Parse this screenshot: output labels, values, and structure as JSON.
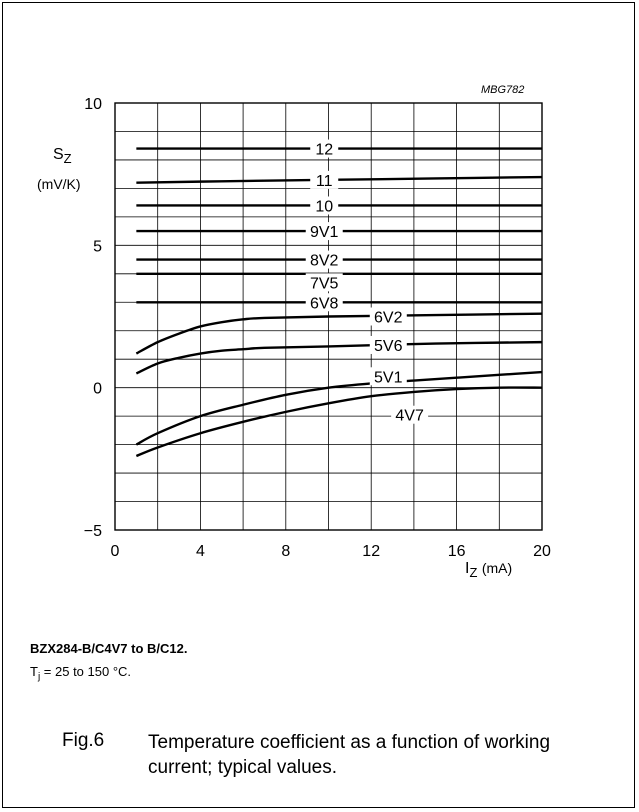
{
  "chart_data": {
    "type": "line",
    "code": "MBG782",
    "y_symbol": "S",
    "y_symbol_sub": "Z",
    "y_unit": "(mV/K)",
    "x_symbol": "I",
    "x_symbol_sub": "Z",
    "x_unit": "(mA)",
    "xlim": [
      0,
      20
    ],
    "ylim": [
      -5,
      10
    ],
    "x_ticks": [
      "0",
      "4",
      "8",
      "12",
      "16",
      "20"
    ],
    "y_ticks": [
      "10",
      "5",
      "0",
      "−5"
    ],
    "grid": true,
    "series": [
      {
        "name": "12",
        "x": [
          1,
          20
        ],
        "y": [
          8.4,
          8.4
        ]
      },
      {
        "name": "11",
        "x": [
          1,
          5,
          10,
          15,
          20
        ],
        "y": [
          7.2,
          7.25,
          7.3,
          7.35,
          7.4
        ]
      },
      {
        "name": "10",
        "x": [
          1,
          20
        ],
        "y": [
          6.4,
          6.4
        ]
      },
      {
        "name": "9V1",
        "x": [
          1,
          20
        ],
        "y": [
          5.5,
          5.5
        ]
      },
      {
        "name": "8V2",
        "x": [
          1,
          20
        ],
        "y": [
          4.5,
          4.5
        ]
      },
      {
        "name": "7V5",
        "x": [
          1,
          20
        ],
        "y": [
          4.0,
          4.0
        ]
      },
      {
        "name": "6V8",
        "x": [
          1,
          20
        ],
        "y": [
          3.0,
          3.0
        ]
      },
      {
        "name": "6V2",
        "x": [
          1,
          2,
          3,
          4,
          5,
          6,
          7,
          10,
          15,
          20
        ],
        "y": [
          1.2,
          1.6,
          1.9,
          2.15,
          2.3,
          2.4,
          2.45,
          2.5,
          2.55,
          2.6
        ]
      },
      {
        "name": "5V6",
        "x": [
          1,
          2,
          3,
          4,
          5,
          6,
          7,
          10,
          15,
          20
        ],
        "y": [
          0.5,
          0.85,
          1.05,
          1.2,
          1.3,
          1.35,
          1.4,
          1.45,
          1.55,
          1.6
        ]
      },
      {
        "name": "5V1",
        "x": [
          1,
          2,
          4,
          6,
          8,
          10,
          12,
          14,
          16,
          18,
          20
        ],
        "y": [
          -2.0,
          -1.6,
          -1.0,
          -0.6,
          -0.25,
          0.0,
          0.15,
          0.25,
          0.35,
          0.45,
          0.55
        ]
      },
      {
        "name": "4V7",
        "x": [
          1,
          2,
          4,
          6,
          8,
          10,
          12,
          14,
          16,
          18,
          20
        ],
        "y": [
          -2.4,
          -2.1,
          -1.6,
          -1.2,
          -0.85,
          -0.55,
          -0.3,
          -0.15,
          -0.05,
          0.0,
          0.0
        ]
      }
    ],
    "label_positions": {
      "12": [
        9.8,
        8.4
      ],
      "11": [
        9.8,
        7.3
      ],
      "10": [
        9.8,
        6.4
      ],
      "9V1": [
        9.8,
        5.5
      ],
      "8V2": [
        9.8,
        4.5
      ],
      "7V5": [
        9.8,
        3.7
      ],
      "6V8": [
        9.8,
        3.0
      ],
      "6V2": [
        12.8,
        2.5
      ],
      "5V6": [
        12.8,
        1.5
      ],
      "5V1": [
        12.8,
        0.4
      ],
      "4V7": [
        13.8,
        -0.95
      ]
    }
  },
  "caption": {
    "subtitle": "BZX284-B/C4V7 to B/C12.",
    "cond_prefix": "T",
    "cond_sub": "j",
    "cond_suffix": " = 25 to 150 °C.",
    "fig_number": "Fig.6",
    "fig_text": "Temperature coefficient as a function of working current; typical values."
  }
}
